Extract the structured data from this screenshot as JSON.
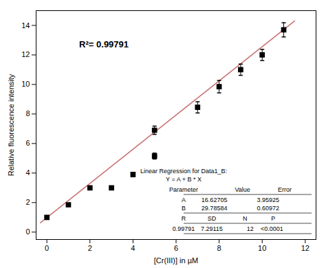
{
  "chart_data": {
    "type": "scatter",
    "x": [
      0,
      1,
      2,
      3,
      4,
      5,
      5,
      7,
      8,
      9,
      10,
      11
    ],
    "values": [
      1.0,
      1.85,
      3.0,
      3.0,
      3.9,
      5.15,
      6.9,
      8.45,
      9.85,
      11.0,
      12.0,
      13.7
    ],
    "yerr": [
      0.05,
      0.1,
      0.1,
      0.05,
      0.15,
      0.2,
      0.28,
      0.38,
      0.42,
      0.38,
      0.38,
      0.48
    ],
    "color": "black",
    "marker": "square",
    "fit_line": {
      "x": [
        -0.3,
        11.5
      ],
      "values": [
        0.6326,
        14.297
      ],
      "color": "#c87070"
    },
    "xlabel": "[Cr(III)] in µM",
    "ylabel": "Relative fluorescence intensity",
    "xlim": [
      -0.5,
      12.5
    ],
    "ylim": [
      -0.5,
      15
    ],
    "xticks": [
      0,
      2,
      4,
      6,
      8,
      10,
      12
    ],
    "yticks": [
      0,
      2,
      4,
      6,
      8,
      10,
      12,
      14
    ],
    "grid": false,
    "annotations": [
      {
        "text": "R²= 0.99791",
        "x": 1.5,
        "y": 12.5
      }
    ],
    "table": {
      "title": "Linear Regression for Data1_B:",
      "equation": "Y = A + B * X",
      "header": [
        "Parameter",
        "Value",
        "Error"
      ],
      "rows": [
        [
          "A",
          "16.62705",
          "3.95925"
        ],
        [
          "B",
          "29.78584",
          "0.60972"
        ]
      ],
      "stat_header": [
        "R",
        "SD",
        "N",
        "P"
      ],
      "stat_values": [
        "0.99791",
        "7.29115",
        "12",
        "<0.0001"
      ]
    }
  }
}
